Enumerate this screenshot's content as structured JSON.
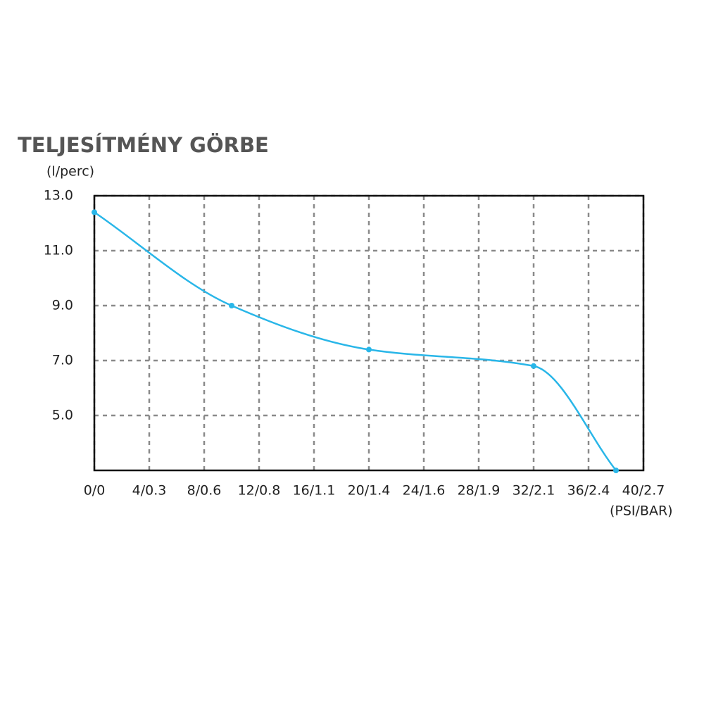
{
  "chart_data": {
    "type": "line",
    "title": "TELJESÍTMÉNY GÖRBE",
    "y_label": "(l/perc)",
    "x_label": "(PSI/BAR)",
    "x": [
      0,
      10,
      20,
      32,
      38
    ],
    "series": [
      {
        "color": "#29b6e8",
        "values": [
          12.4,
          9.0,
          7.4,
          6.8,
          3.0
        ]
      }
    ],
    "xlim": [
      0,
      40
    ],
    "ylim": [
      3,
      13
    ],
    "xticks": [
      {
        "value": 0,
        "label": "0/0"
      },
      {
        "value": 4,
        "label": "4/0.3"
      },
      {
        "value": 8,
        "label": "8/0.6"
      },
      {
        "value": 12,
        "label": "12/0.8"
      },
      {
        "value": 16,
        "label": "16/1.1"
      },
      {
        "value": 20,
        "label": "20/1.4"
      },
      {
        "value": 24,
        "label": "24/1.6"
      },
      {
        "value": 28,
        "label": "28/1.9"
      },
      {
        "value": 32,
        "label": "32/2.1"
      },
      {
        "value": 36,
        "label": "36/2.4"
      },
      {
        "value": 40,
        "label": "40/2.7"
      }
    ],
    "yticks": [
      {
        "value": 5,
        "label": "5.0"
      },
      {
        "value": 7,
        "label": "7.0"
      },
      {
        "value": 9,
        "label": "9.0"
      },
      {
        "value": 11,
        "label": "11.0"
      },
      {
        "value": 13,
        "label": "13.0"
      }
    ],
    "grid": true
  }
}
